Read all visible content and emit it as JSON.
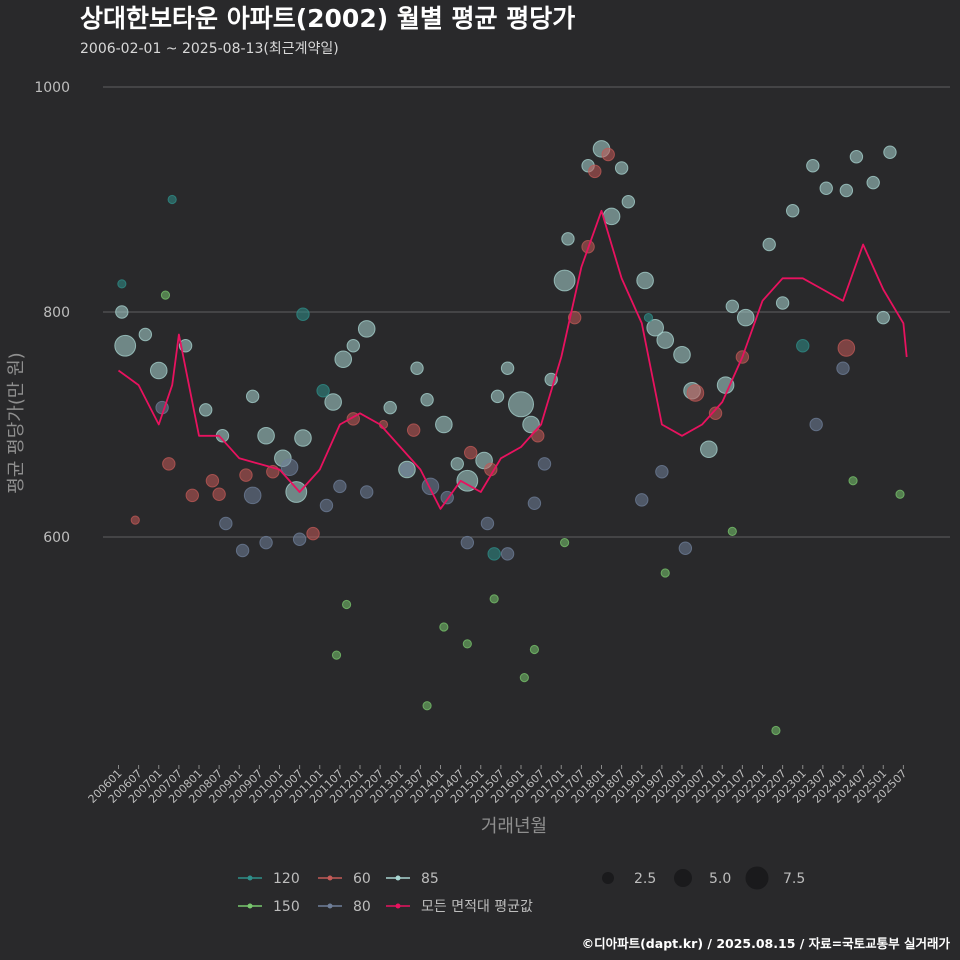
{
  "chart_data": {
    "type": "scatter",
    "title": "상대한보타운 아파트(2002) 월별 평균 평당가",
    "subtitle": "2006-02-01 ~ 2025-08-13(최근계약일)",
    "xlabel": "거래년월",
    "ylabel": "평균 평당가(만 원)",
    "ylim": [
      400,
      1000
    ],
    "y_ticks": [
      600,
      800,
      1000
    ],
    "x_range": [
      "2006-01",
      "2025-08"
    ],
    "x_ticks": [
      "200601",
      "200607",
      "200701",
      "200707",
      "200801",
      "200807",
      "200901",
      "200907",
      "201001",
      "201007",
      "201101",
      "201107",
      "201201",
      "201207",
      "201301",
      "201307",
      "201401",
      "201407",
      "201501",
      "201507",
      "201601",
      "201607",
      "201701",
      "201707",
      "201801",
      "201807",
      "201901",
      "201907",
      "202001",
      "202007",
      "202101",
      "202107",
      "202201",
      "202207",
      "202301",
      "202307",
      "202401",
      "202407",
      "202501",
      "202507"
    ],
    "caption": "©디아파트(dapt.kr) / 2025.08.15 / 자료=국토교통부 실거래가",
    "colors": {
      "120": "#2f8f8a",
      "60": "#c25a57",
      "85": "#a9d6d2",
      "150": "#79c76e",
      "80": "#6f7f99",
      "all": "#e8125f"
    },
    "legend": {
      "series": [
        {
          "key": "120",
          "label": "120"
        },
        {
          "key": "60",
          "label": "60"
        },
        {
          "key": "85",
          "label": "85"
        },
        {
          "key": "150",
          "label": "150"
        },
        {
          "key": "80",
          "label": "80"
        },
        {
          "key": "all",
          "label": "모든 면적대 평균값"
        }
      ],
      "sizes": [
        {
          "value": 2.5,
          "label": "2.5"
        },
        {
          "value": 5.0,
          "label": "5.0"
        },
        {
          "value": 7.5,
          "label": "7.5"
        }
      ]
    },
    "series": [
      {
        "name": "모든 면적대 평균값",
        "type": "line",
        "color_key": "all",
        "x": [
          "2006-01",
          "2006-07",
          "2007-01",
          "2007-05",
          "2007-07",
          "2008-01",
          "2008-07",
          "2009-01",
          "2009-07",
          "2010-01",
          "2010-07",
          "2011-01",
          "2011-07",
          "2012-01",
          "2012-07",
          "2013-01",
          "2013-07",
          "2014-01",
          "2014-07",
          "2015-01",
          "2015-07",
          "2016-01",
          "2016-07",
          "2017-01",
          "2017-07",
          "2018-01",
          "2018-07",
          "2019-01",
          "2019-07",
          "2020-01",
          "2020-07",
          "2021-01",
          "2021-07",
          "2022-01",
          "2022-07",
          "2023-01",
          "2023-07",
          "2024-01",
          "2024-07",
          "2025-01",
          "2025-07",
          "2025-08"
        ],
        "values": [
          748,
          735,
          700,
          735,
          780,
          690,
          690,
          670,
          665,
          660,
          640,
          660,
          700,
          710,
          700,
          680,
          660,
          625,
          650,
          640,
          670,
          680,
          700,
          760,
          840,
          890,
          830,
          790,
          700,
          690,
          700,
          720,
          760,
          810,
          830,
          830,
          820,
          810,
          860,
          820,
          790,
          760
        ]
      },
      {
        "name": "85",
        "type": "scatter",
        "color_key": "85",
        "points": [
          {
            "x": "2006-03",
            "y": 770,
            "size": 4
          },
          {
            "x": "2006-02",
            "y": 800,
            "size": 2
          },
          {
            "x": "2006-09",
            "y": 780,
            "size": 2
          },
          {
            "x": "2007-01",
            "y": 748,
            "size": 3
          },
          {
            "x": "2007-09",
            "y": 770,
            "size": 2
          },
          {
            "x": "2008-03",
            "y": 713,
            "size": 2
          },
          {
            "x": "2008-08",
            "y": 690,
            "size": 2
          },
          {
            "x": "2009-05",
            "y": 725,
            "size": 2
          },
          {
            "x": "2009-09",
            "y": 690,
            "size": 3
          },
          {
            "x": "2010-02",
            "y": 670,
            "size": 3
          },
          {
            "x": "2010-06",
            "y": 640,
            "size": 4
          },
          {
            "x": "2010-08",
            "y": 688,
            "size": 3
          },
          {
            "x": "2011-05",
            "y": 720,
            "size": 3
          },
          {
            "x": "2011-08",
            "y": 758,
            "size": 3
          },
          {
            "x": "2011-11",
            "y": 770,
            "size": 2
          },
          {
            "x": "2012-03",
            "y": 785,
            "size": 3
          },
          {
            "x": "2012-10",
            "y": 715,
            "size": 2
          },
          {
            "x": "2013-03",
            "y": 660,
            "size": 3
          },
          {
            "x": "2013-06",
            "y": 750,
            "size": 2
          },
          {
            "x": "2013-09",
            "y": 722,
            "size": 2
          },
          {
            "x": "2014-02",
            "y": 700,
            "size": 3
          },
          {
            "x": "2014-06",
            "y": 665,
            "size": 2
          },
          {
            "x": "2014-09",
            "y": 650,
            "size": 4
          },
          {
            "x": "2015-02",
            "y": 668,
            "size": 3
          },
          {
            "x": "2015-06",
            "y": 725,
            "size": 2
          },
          {
            "x": "2015-09",
            "y": 750,
            "size": 2
          },
          {
            "x": "2016-01",
            "y": 718,
            "size": 5
          },
          {
            "x": "2016-04",
            "y": 700,
            "size": 3
          },
          {
            "x": "2016-10",
            "y": 740,
            "size": 2
          },
          {
            "x": "2017-02",
            "y": 828,
            "size": 4
          },
          {
            "x": "2017-03",
            "y": 865,
            "size": 2
          },
          {
            "x": "2017-09",
            "y": 930,
            "size": 2
          },
          {
            "x": "2018-01",
            "y": 945,
            "size": 3
          },
          {
            "x": "2018-04",
            "y": 885,
            "size": 3
          },
          {
            "x": "2018-07",
            "y": 928,
            "size": 2
          },
          {
            "x": "2018-09",
            "y": 898,
            "size": 2
          },
          {
            "x": "2019-02",
            "y": 828,
            "size": 3
          },
          {
            "x": "2019-05",
            "y": 786,
            "size": 3
          },
          {
            "x": "2019-08",
            "y": 775,
            "size": 3
          },
          {
            "x": "2020-01",
            "y": 762,
            "size": 3
          },
          {
            "x": "2020-04",
            "y": 730,
            "size": 3
          },
          {
            "x": "2020-09",
            "y": 678,
            "size": 3
          },
          {
            "x": "2021-02",
            "y": 735,
            "size": 3
          },
          {
            "x": "2021-04",
            "y": 805,
            "size": 2
          },
          {
            "x": "2021-08",
            "y": 795,
            "size": 3
          },
          {
            "x": "2022-03",
            "y": 860,
            "size": 2
          },
          {
            "x": "2022-07",
            "y": 808,
            "size": 2
          },
          {
            "x": "2022-10",
            "y": 890,
            "size": 2
          },
          {
            "x": "2023-04",
            "y": 930,
            "size": 2
          },
          {
            "x": "2023-08",
            "y": 910,
            "size": 2
          },
          {
            "x": "2024-02",
            "y": 908,
            "size": 2
          },
          {
            "x": "2024-05",
            "y": 938,
            "size": 2
          },
          {
            "x": "2024-10",
            "y": 915,
            "size": 2
          },
          {
            "x": "2025-03",
            "y": 942,
            "size": 2
          },
          {
            "x": "2025-01",
            "y": 795,
            "size": 2
          }
        ]
      },
      {
        "name": "80",
        "type": "scatter",
        "color_key": "80",
        "points": [
          {
            "x": "2007-02",
            "y": 715,
            "size": 2
          },
          {
            "x": "2008-09",
            "y": 612,
            "size": 2
          },
          {
            "x": "2009-02",
            "y": 588,
            "size": 2
          },
          {
            "x": "2009-05",
            "y": 637,
            "size": 3
          },
          {
            "x": "2009-09",
            "y": 595,
            "size": 2
          },
          {
            "x": "2010-04",
            "y": 662,
            "size": 3
          },
          {
            "x": "2010-07",
            "y": 598,
            "size": 2
          },
          {
            "x": "2011-03",
            "y": 628,
            "size": 2
          },
          {
            "x": "2011-07",
            "y": 645,
            "size": 2
          },
          {
            "x": "2012-03",
            "y": 640,
            "size": 2
          },
          {
            "x": "2013-03",
            "y": 660,
            "size": 2
          },
          {
            "x": "2013-10",
            "y": 645,
            "size": 3
          },
          {
            "x": "2014-03",
            "y": 635,
            "size": 2
          },
          {
            "x": "2014-09",
            "y": 595,
            "size": 2
          },
          {
            "x": "2015-03",
            "y": 612,
            "size": 2
          },
          {
            "x": "2015-09",
            "y": 585,
            "size": 2
          },
          {
            "x": "2016-05",
            "y": 630,
            "size": 2
          },
          {
            "x": "2016-08",
            "y": 665,
            "size": 2
          },
          {
            "x": "2019-01",
            "y": 633,
            "size": 2
          },
          {
            "x": "2019-07",
            "y": 658,
            "size": 2
          },
          {
            "x": "2020-02",
            "y": 590,
            "size": 2
          },
          {
            "x": "2023-05",
            "y": 700,
            "size": 2
          },
          {
            "x": "2024-01",
            "y": 750,
            "size": 2
          }
        ]
      },
      {
        "name": "60",
        "type": "scatter",
        "color_key": "60",
        "points": [
          {
            "x": "2006-06",
            "y": 615,
            "size": 1
          },
          {
            "x": "2007-04",
            "y": 665,
            "size": 2
          },
          {
            "x": "2007-11",
            "y": 637,
            "size": 2
          },
          {
            "x": "2008-05",
            "y": 650,
            "size": 2
          },
          {
            "x": "2008-07",
            "y": 638,
            "size": 2
          },
          {
            "x": "2009-03",
            "y": 655,
            "size": 2
          },
          {
            "x": "2009-11",
            "y": 658,
            "size": 2
          },
          {
            "x": "2010-11",
            "y": 603,
            "size": 2
          },
          {
            "x": "2011-11",
            "y": 705,
            "size": 2
          },
          {
            "x": "2012-08",
            "y": 700,
            "size": 1
          },
          {
            "x": "2013-05",
            "y": 695,
            "size": 2
          },
          {
            "x": "2014-10",
            "y": 675,
            "size": 2
          },
          {
            "x": "2015-04",
            "y": 660,
            "size": 2
          },
          {
            "x": "2016-06",
            "y": 690,
            "size": 2
          },
          {
            "x": "2017-05",
            "y": 795,
            "size": 2
          },
          {
            "x": "2017-09",
            "y": 858,
            "size": 2
          },
          {
            "x": "2017-11",
            "y": 925,
            "size": 2
          },
          {
            "x": "2018-03",
            "y": 940,
            "size": 2
          },
          {
            "x": "2020-05",
            "y": 728,
            "size": 3
          },
          {
            "x": "2020-11",
            "y": 710,
            "size": 2
          },
          {
            "x": "2021-07",
            "y": 760,
            "size": 2
          },
          {
            "x": "2024-02",
            "y": 768,
            "size": 3
          }
        ]
      },
      {
        "name": "120",
        "type": "scatter",
        "color_key": "120",
        "points": [
          {
            "x": "2006-02",
            "y": 825,
            "size": 1
          },
          {
            "x": "2007-05",
            "y": 900,
            "size": 1
          },
          {
            "x": "2010-08",
            "y": 798,
            "size": 2
          },
          {
            "x": "2011-02",
            "y": 730,
            "size": 2
          },
          {
            "x": "2015-05",
            "y": 585,
            "size": 2
          },
          {
            "x": "2019-03",
            "y": 795,
            "size": 1
          },
          {
            "x": "2023-01",
            "y": 770,
            "size": 2
          }
        ]
      },
      {
        "name": "150",
        "type": "scatter",
        "color_key": "150",
        "points": [
          {
            "x": "2007-03",
            "y": 815,
            "size": 1
          },
          {
            "x": "2011-06",
            "y": 495,
            "size": 1
          },
          {
            "x": "2011-09",
            "y": 540,
            "size": 1
          },
          {
            "x": "2013-09",
            "y": 450,
            "size": 1
          },
          {
            "x": "2014-02",
            "y": 520,
            "size": 1
          },
          {
            "x": "2014-09",
            "y": 505,
            "size": 1
          },
          {
            "x": "2015-05",
            "y": 545,
            "size": 1
          },
          {
            "x": "2016-02",
            "y": 475,
            "size": 1
          },
          {
            "x": "2016-05",
            "y": 500,
            "size": 1
          },
          {
            "x": "2017-02",
            "y": 595,
            "size": 1
          },
          {
            "x": "2019-08",
            "y": 568,
            "size": 1
          },
          {
            "x": "2021-04",
            "y": 605,
            "size": 1
          },
          {
            "x": "2022-05",
            "y": 428,
            "size": 1
          },
          {
            "x": "2024-04",
            "y": 650,
            "size": 1
          },
          {
            "x": "2025-06",
            "y": 638,
            "size": 1
          }
        ]
      }
    ]
  }
}
